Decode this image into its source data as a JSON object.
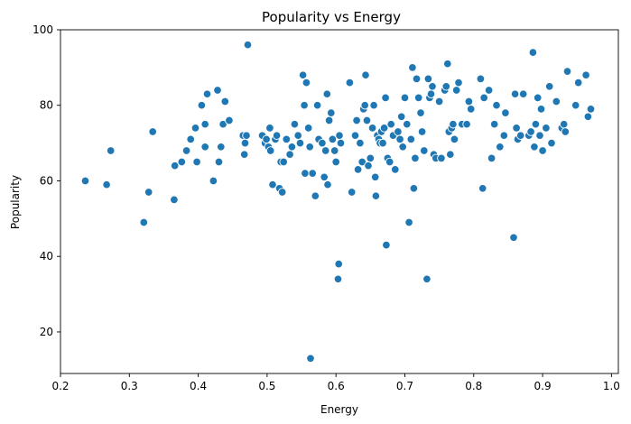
{
  "chart_data": {
    "type": "scatter",
    "title": "Popularity vs Energy",
    "xlabel": "Energy",
    "ylabel": "Popularity",
    "xlim": [
      0.2,
      1.01
    ],
    "ylim": [
      9,
      100
    ],
    "x_ticks": [
      "0.2",
      "0.3",
      "0.4",
      "0.5",
      "0.6",
      "0.7",
      "0.8",
      "0.9",
      "1.0"
    ],
    "y_ticks": [
      "20",
      "40",
      "60",
      "80",
      "100"
    ],
    "grid": false,
    "marker_color": "#1f77b4",
    "points": [
      [
        0.236,
        60
      ],
      [
        0.267,
        59
      ],
      [
        0.273,
        68
      ],
      [
        0.321,
        49
      ],
      [
        0.328,
        57
      ],
      [
        0.334,
        73
      ],
      [
        0.365,
        55
      ],
      [
        0.366,
        64
      ],
      [
        0.376,
        65
      ],
      [
        0.383,
        68
      ],
      [
        0.389,
        71
      ],
      [
        0.396,
        74
      ],
      [
        0.398,
        65
      ],
      [
        0.405,
        80
      ],
      [
        0.41,
        75
      ],
      [
        0.413,
        83
      ],
      [
        0.422,
        60
      ],
      [
        0.428,
        84
      ],
      [
        0.43,
        65
      ],
      [
        0.433,
        69
      ],
      [
        0.436,
        75
      ],
      [
        0.439,
        81
      ],
      [
        0.445,
        76
      ],
      [
        0.41,
        69
      ],
      [
        0.465,
        72
      ],
      [
        0.467,
        67
      ],
      [
        0.468,
        70
      ],
      [
        0.47,
        72
      ],
      [
        0.472,
        96
      ],
      [
        0.493,
        72
      ],
      [
        0.497,
        70
      ],
      [
        0.499,
        71
      ],
      [
        0.502,
        69
      ],
      [
        0.504,
        74
      ],
      [
        0.505,
        68
      ],
      [
        0.508,
        59
      ],
      [
        0.512,
        71
      ],
      [
        0.514,
        72
      ],
      [
        0.518,
        58
      ],
      [
        0.52,
        65
      ],
      [
        0.522,
        57
      ],
      [
        0.524,
        65
      ],
      [
        0.528,
        71
      ],
      [
        0.533,
        67
      ],
      [
        0.536,
        69
      ],
      [
        0.54,
        75
      ],
      [
        0.545,
        72
      ],
      [
        0.548,
        70
      ],
      [
        0.552,
        88
      ],
      [
        0.554,
        80
      ],
      [
        0.555,
        62
      ],
      [
        0.557,
        86
      ],
      [
        0.56,
        74
      ],
      [
        0.562,
        69
      ],
      [
        0.563,
        13
      ],
      [
        0.566,
        62
      ],
      [
        0.57,
        56
      ],
      [
        0.573,
        80
      ],
      [
        0.575,
        71
      ],
      [
        0.58,
        70
      ],
      [
        0.583,
        61
      ],
      [
        0.585,
        68
      ],
      [
        0.587,
        83
      ],
      [
        0.588,
        59
      ],
      [
        0.59,
        76
      ],
      [
        0.593,
        78
      ],
      [
        0.595,
        71
      ],
      [
        0.598,
        68
      ],
      [
        0.6,
        65
      ],
      [
        0.603,
        34
      ],
      [
        0.604,
        38
      ],
      [
        0.605,
        72
      ],
      [
        0.607,
        70
      ],
      [
        0.62,
        86
      ],
      [
        0.623,
        57
      ],
      [
        0.628,
        72
      ],
      [
        0.63,
        76
      ],
      [
        0.632,
        63
      ],
      [
        0.635,
        70
      ],
      [
        0.638,
        65
      ],
      [
        0.64,
        79
      ],
      [
        0.642,
        80
      ],
      [
        0.643,
        88
      ],
      [
        0.645,
        76
      ],
      [
        0.647,
        64
      ],
      [
        0.65,
        66
      ],
      [
        0.653,
        74
      ],
      [
        0.655,
        80
      ],
      [
        0.657,
        61
      ],
      [
        0.658,
        56
      ],
      [
        0.66,
        72
      ],
      [
        0.662,
        71
      ],
      [
        0.664,
        70
      ],
      [
        0.666,
        73
      ],
      [
        0.668,
        70
      ],
      [
        0.67,
        74
      ],
      [
        0.672,
        82
      ],
      [
        0.673,
        43
      ],
      [
        0.675,
        66
      ],
      [
        0.678,
        65
      ],
      [
        0.68,
        75
      ],
      [
        0.683,
        72
      ],
      [
        0.686,
        63
      ],
      [
        0.69,
        73
      ],
      [
        0.693,
        71
      ],
      [
        0.695,
        77
      ],
      [
        0.697,
        69
      ],
      [
        0.7,
        82
      ],
      [
        0.703,
        75
      ],
      [
        0.706,
        49
      ],
      [
        0.709,
        71
      ],
      [
        0.711,
        90
      ],
      [
        0.713,
        58
      ],
      [
        0.715,
        66
      ],
      [
        0.717,
        87
      ],
      [
        0.72,
        82
      ],
      [
        0.723,
        78
      ],
      [
        0.725,
        73
      ],
      [
        0.728,
        68
      ],
      [
        0.732,
        34
      ],
      [
        0.734,
        87
      ],
      [
        0.736,
        82
      ],
      [
        0.738,
        83
      ],
      [
        0.74,
        85
      ],
      [
        0.742,
        67
      ],
      [
        0.745,
        66
      ],
      [
        0.75,
        81
      ],
      [
        0.753,
        66
      ],
      [
        0.758,
        84
      ],
      [
        0.76,
        85
      ],
      [
        0.762,
        91
      ],
      [
        0.764,
        73
      ],
      [
        0.766,
        67
      ],
      [
        0.768,
        74
      ],
      [
        0.77,
        75
      ],
      [
        0.772,
        71
      ],
      [
        0.775,
        84
      ],
      [
        0.778,
        86
      ],
      [
        0.783,
        75
      ],
      [
        0.79,
        75
      ],
      [
        0.793,
        81
      ],
      [
        0.796,
        79
      ],
      [
        0.81,
        87
      ],
      [
        0.813,
        58
      ],
      [
        0.815,
        82
      ],
      [
        0.822,
        84
      ],
      [
        0.826,
        66
      ],
      [
        0.83,
        75
      ],
      [
        0.833,
        80
      ],
      [
        0.838,
        69
      ],
      [
        0.844,
        72
      ],
      [
        0.846,
        78
      ],
      [
        0.858,
        45
      ],
      [
        0.86,
        83
      ],
      [
        0.862,
        74
      ],
      [
        0.864,
        71
      ],
      [
        0.868,
        72
      ],
      [
        0.872,
        83
      ],
      [
        0.88,
        72
      ],
      [
        0.883,
        73
      ],
      [
        0.886,
        94
      ],
      [
        0.888,
        69
      ],
      [
        0.89,
        75
      ],
      [
        0.893,
        82
      ],
      [
        0.896,
        72
      ],
      [
        0.898,
        79
      ],
      [
        0.9,
        68
      ],
      [
        0.905,
        74
      ],
      [
        0.91,
        85
      ],
      [
        0.913,
        70
      ],
      [
        0.92,
        81
      ],
      [
        0.928,
        74
      ],
      [
        0.931,
        75
      ],
      [
        0.933,
        73
      ],
      [
        0.936,
        89
      ],
      [
        0.948,
        80
      ],
      [
        0.952,
        86
      ],
      [
        0.963,
        88
      ],
      [
        0.966,
        77
      ],
      [
        0.97,
        79
      ]
    ]
  }
}
